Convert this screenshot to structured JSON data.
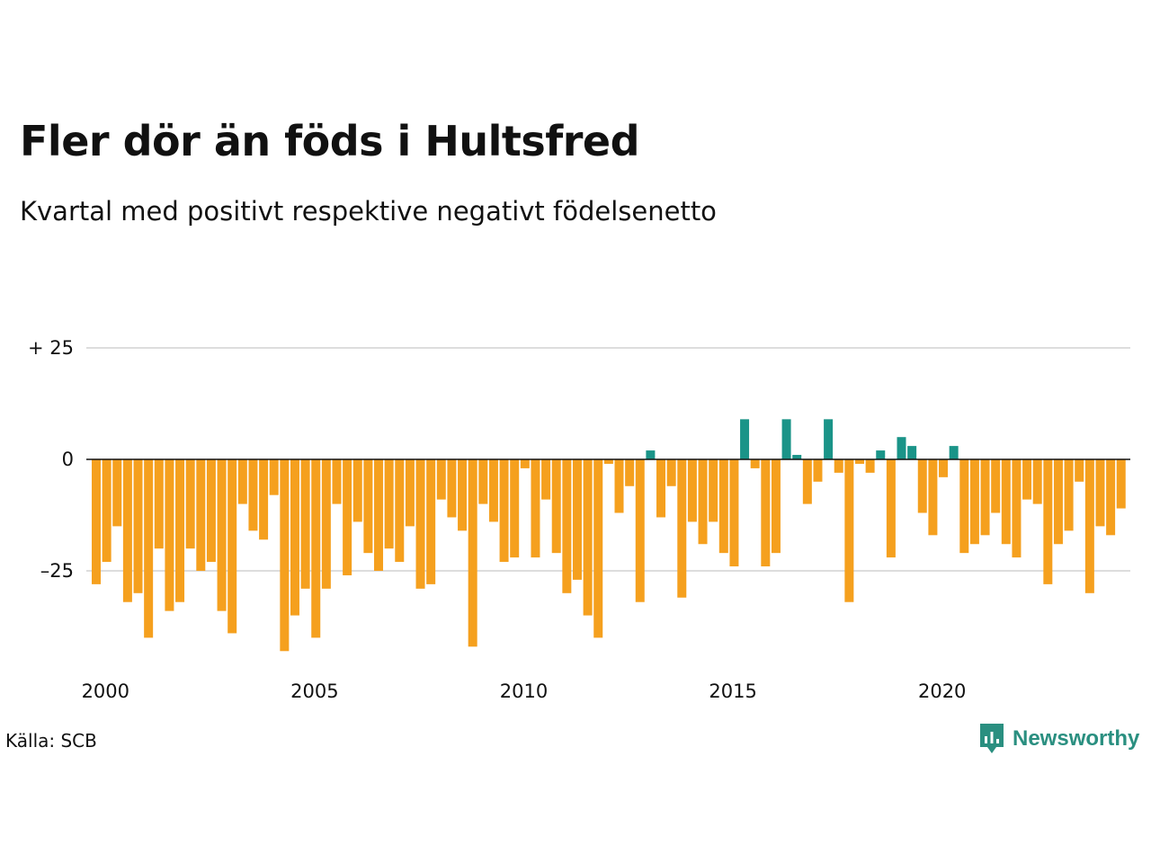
{
  "title": "Fler dör än föds i Hultsfred",
  "subtitle": "Kvartal med positivt respektive negativt födelsenetto",
  "source": "Källa: SCB",
  "brand": {
    "name": "Newsworthy",
    "icon": "newsworthy-logo-icon",
    "color": "#2a8f80"
  },
  "colors": {
    "positive": "#1a9488",
    "negative": "#f5a01e",
    "grid": "#dddddd",
    "zero": "#111111"
  },
  "chart_data": {
    "type": "bar",
    "title": "Fler dör än föds i Hultsfred",
    "subtitle": "Kvartal med positivt respektive negativt födelsenetto",
    "xlabel": "",
    "ylabel": "",
    "ylim": [
      -43,
      25
    ],
    "grid": true,
    "y_ticks": [
      {
        "value": 25,
        "label": "+ 25"
      },
      {
        "value": 0,
        "label": "0"
      },
      {
        "value": -25,
        "label": "–25"
      }
    ],
    "x_ticks": [
      {
        "value": 2000,
        "label": "2000"
      },
      {
        "value": 2005,
        "label": "2005"
      },
      {
        "value": 2010,
        "label": "2010"
      },
      {
        "value": 2015,
        "label": "2015"
      },
      {
        "value": 2020,
        "label": "2020"
      }
    ],
    "start_year": 2000,
    "values": [
      -28,
      -23,
      -15,
      -32,
      -30,
      -40,
      -20,
      -34,
      -32,
      -20,
      -25,
      -23,
      -34,
      -39,
      -10,
      -16,
      -18,
      -8,
      -43,
      -35,
      -29,
      -40,
      -29,
      -10,
      -26,
      -14,
      -21,
      -25,
      -20,
      -23,
      -15,
      -29,
      -28,
      -9,
      -13,
      -16,
      -42,
      -10,
      -14,
      -23,
      -22,
      -2,
      -22,
      -9,
      -21,
      -30,
      -27,
      -35,
      -40,
      -1,
      -12,
      -6,
      -32,
      2,
      -13,
      -6,
      -31,
      -14,
      -19,
      -14,
      -21,
      -24,
      9,
      -2,
      -24,
      -21,
      9,
      1,
      -10,
      -5,
      9,
      -3,
      -32,
      -1,
      -3,
      2,
      -22,
      5,
      3,
      -12,
      -17,
      -4,
      3,
      -21,
      -19,
      -17,
      -12,
      -19,
      -22,
      -9,
      -10,
      -28,
      -19,
      -16,
      -5,
      -30,
      -15,
      -17,
      -11
    ]
  }
}
